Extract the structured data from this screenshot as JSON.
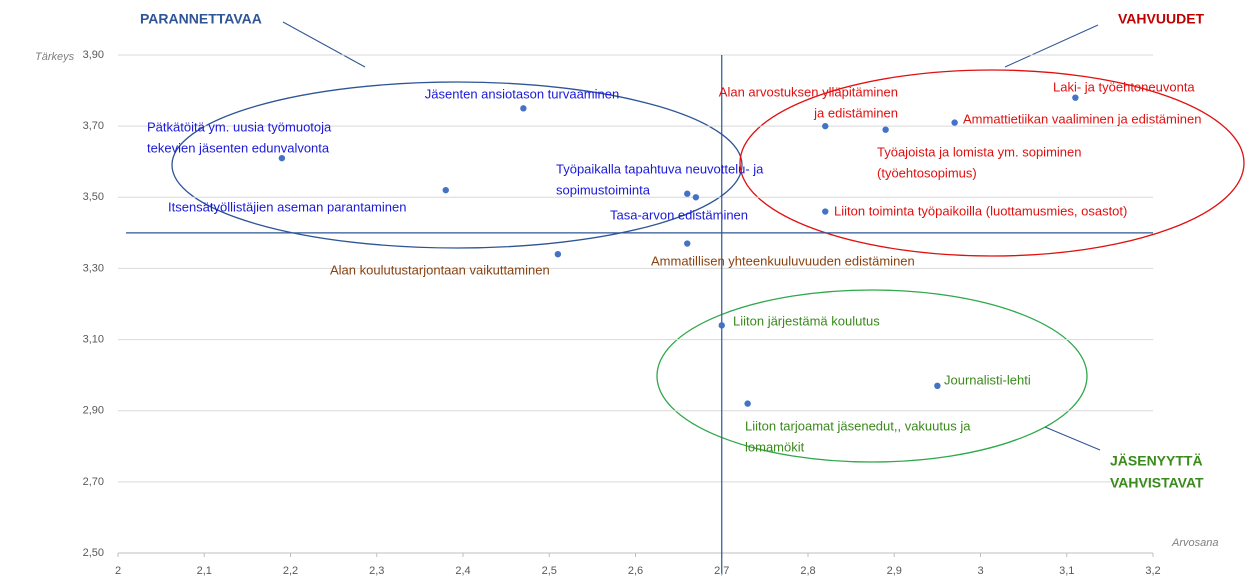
{
  "chart_data": {
    "type": "scatter",
    "x_label": "Arvosana",
    "y_label": "Tärkeys",
    "xlim": [
      2,
      3.2
    ],
    "ylim": [
      2.5,
      3.9
    ],
    "xticks": [
      2,
      {
        "value": 2.1,
        "label": "2,1"
      },
      {
        "value": 2.2,
        "label": "2,2"
      },
      {
        "value": 2.3,
        "label": "2,3"
      },
      {
        "value": 2.4,
        "label": "2,4"
      },
      {
        "value": 2.5,
        "label": "2,5"
      },
      {
        "value": 2.6,
        "label": "2,6"
      },
      {
        "value": 2.7,
        "label": "2,7"
      },
      {
        "value": 2.8,
        "label": "2,8"
      },
      {
        "value": 2.9,
        "label": "2,9"
      },
      3,
      {
        "value": 3.1,
        "label": "3,1"
      },
      {
        "value": 3.2,
        "label": "3,2"
      }
    ],
    "yticks": [
      {
        "value": 2.5,
        "label": "2,50"
      },
      {
        "value": 2.7,
        "label": "2,70"
      },
      {
        "value": 2.9,
        "label": "2,90"
      },
      {
        "value": 3.1,
        "label": "3,10"
      },
      {
        "value": 3.3,
        "label": "3,30"
      },
      {
        "value": 3.5,
        "label": "3,50"
      },
      {
        "value": 3.7,
        "label": "3,70"
      },
      {
        "value": 3.9,
        "label": "3,90"
      }
    ],
    "grid": true,
    "marker_color": "#4472c4",
    "reference_lines": {
      "x": 2.7,
      "y": 3.4
    },
    "annotations": [
      {
        "lines": [
          "PARANNETTAVAA"
        ],
        "color": "#2f5597"
      },
      {
        "lines": [
          "VAHVUUDET"
        ],
        "color": "#c00000"
      },
      {
        "lines": [
          "JÄSENYYTTÄ",
          "VAHVISTAVAT"
        ],
        "color": "#3a8a1c"
      }
    ],
    "points": [
      {
        "x": 2.47,
        "y": 3.75,
        "color": "#1a1ad8",
        "label": [
          "Jäsenten ansiotason turvaaminen"
        ]
      },
      {
        "x": 2.19,
        "y": 3.61,
        "color": "#1a1ad8",
        "label": [
          "Pätkätöitä ym. uusia työmuotoja",
          "tekevien jäsenten edunvalvonta"
        ]
      },
      {
        "x": 2.38,
        "y": 3.52,
        "color": "#1a1ad8",
        "label": [
          "Itsensätyöllistäjien aseman parantaminen"
        ]
      },
      {
        "x": 2.51,
        "y": 3.34,
        "color": "#8a4210",
        "label": [
          "Alan koulutustarjontaan vaikuttaminen"
        ]
      },
      {
        "x": 2.66,
        "y": 3.51,
        "color": "#1a1ad8",
        "label": [
          "Työpaikalla tapahtuva neuvottelu- ja",
          "sopimustoiminta"
        ]
      },
      {
        "x": 2.67,
        "y": 3.5,
        "color": "#1a1ad8",
        "label": [
          "Tasa-arvon edistäminen"
        ]
      },
      {
        "x": 2.66,
        "y": 3.37,
        "color": "#8a4210",
        "label": [
          "Ammatillisen yhteenkuuluvuuden edistäminen"
        ]
      },
      {
        "x": 2.7,
        "y": 3.14,
        "color": "#3a8a1c",
        "label": [
          "Liiton järjestämä koulutus"
        ]
      },
      {
        "x": 2.73,
        "y": 2.92,
        "color": "#3a8a1c",
        "label": [
          "Liiton tarjoamat jäsenedut,, vakuutus ja",
          "lomamökit"
        ]
      },
      {
        "x": 2.95,
        "y": 2.97,
        "color": "#3a8a1c",
        "label": [
          "Journalisti-lehti"
        ]
      },
      {
        "x": 2.82,
        "y": 3.7,
        "color": "#e01010",
        "label": [
          "Alan arvostuksen ylläpitäminen",
          "ja edistäminen"
        ]
      },
      {
        "x": 2.89,
        "y": 3.69,
        "color": "#e01010",
        "label": [
          "Työajoista ja lomista ym. sopiminen",
          "(työehtosopimus)"
        ]
      },
      {
        "x": 2.97,
        "y": 3.71,
        "color": "#e01010",
        "label": [
          "Ammattietiikan vaaliminen ja edistäminen"
        ]
      },
      {
        "x": 3.11,
        "y": 3.78,
        "color": "#e01010",
        "label": [
          "Laki- ja työehtoneuvonta"
        ]
      },
      {
        "x": 2.82,
        "y": 3.46,
        "color": "#e01010",
        "label": [
          "Liiton toiminta työpaikoilla (luottamusmies, osastot)"
        ]
      }
    ]
  }
}
